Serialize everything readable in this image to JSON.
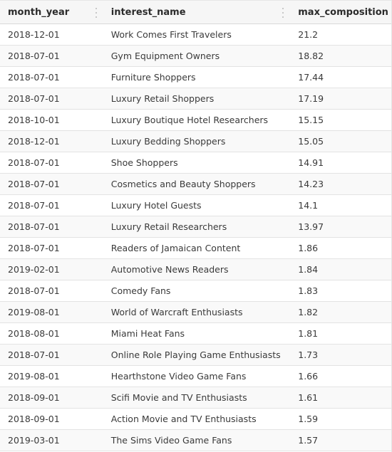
{
  "columns": {
    "month_year": "month_year",
    "interest_name": "interest_name",
    "max_composition": "max_composition"
  },
  "rows": [
    {
      "month_year": "2018-12-01",
      "interest_name": "Work Comes First Travelers",
      "max_composition": "21.2"
    },
    {
      "month_year": "2018-07-01",
      "interest_name": "Gym Equipment Owners",
      "max_composition": "18.82"
    },
    {
      "month_year": "2018-07-01",
      "interest_name": "Furniture Shoppers",
      "max_composition": "17.44"
    },
    {
      "month_year": "2018-07-01",
      "interest_name": "Luxury Retail Shoppers",
      "max_composition": "17.19"
    },
    {
      "month_year": "2018-10-01",
      "interest_name": "Luxury Boutique Hotel Researchers",
      "max_composition": "15.15"
    },
    {
      "month_year": "2018-12-01",
      "interest_name": "Luxury Bedding Shoppers",
      "max_composition": "15.05"
    },
    {
      "month_year": "2018-07-01",
      "interest_name": "Shoe Shoppers",
      "max_composition": "14.91"
    },
    {
      "month_year": "2018-07-01",
      "interest_name": "Cosmetics and Beauty Shoppers",
      "max_composition": "14.23"
    },
    {
      "month_year": "2018-07-01",
      "interest_name": "Luxury Hotel Guests",
      "max_composition": "14.1"
    },
    {
      "month_year": "2018-07-01",
      "interest_name": "Luxury Retail Researchers",
      "max_composition": "13.97"
    },
    {
      "month_year": "2018-07-01",
      "interest_name": "Readers of Jamaican Content",
      "max_composition": "1.86"
    },
    {
      "month_year": "2019-02-01",
      "interest_name": "Automotive News Readers",
      "max_composition": "1.84"
    },
    {
      "month_year": "2018-07-01",
      "interest_name": "Comedy Fans",
      "max_composition": "1.83"
    },
    {
      "month_year": "2019-08-01",
      "interest_name": "World of Warcraft Enthusiasts",
      "max_composition": "1.82"
    },
    {
      "month_year": "2018-08-01",
      "interest_name": "Miami Heat Fans",
      "max_composition": "1.81"
    },
    {
      "month_year": "2018-07-01",
      "interest_name": "Online Role Playing Game Enthusiasts",
      "max_composition": "1.73"
    },
    {
      "month_year": "2019-08-01",
      "interest_name": "Hearthstone Video Game Fans",
      "max_composition": "1.66"
    },
    {
      "month_year": "2018-09-01",
      "interest_name": "Scifi Movie and TV Enthusiasts",
      "max_composition": "1.61"
    },
    {
      "month_year": "2018-09-01",
      "interest_name": "Action Movie and TV Enthusiasts",
      "max_composition": "1.59"
    },
    {
      "month_year": "2019-03-01",
      "interest_name": "The Sims Video Game Fans",
      "max_composition": "1.57"
    }
  ]
}
